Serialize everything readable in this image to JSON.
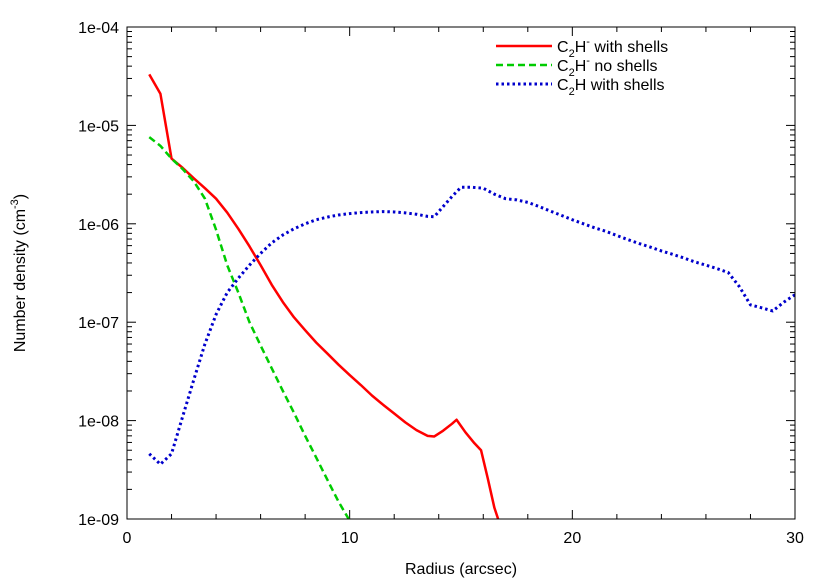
{
  "chart_data": {
    "type": "line",
    "title": "",
    "xlabel": "Radius (arcsec)",
    "ylabel": "Number density (cm-3)",
    "ylabel_parts": {
      "base": "Number density (cm",
      "superscript": "-3",
      "suffix": ")"
    },
    "xlim": [
      0,
      30
    ],
    "ylim": [
      1e-09,
      0.0001
    ],
    "yscale": "log",
    "grid": false,
    "legend_position": "top-right",
    "x_ticks": [
      0,
      10,
      20,
      30
    ],
    "x_tick_labels": [
      "0",
      "10",
      "20",
      "30"
    ],
    "y_ticks": [
      1e-09,
      1e-08,
      1e-07,
      1e-06,
      1e-05,
      0.0001
    ],
    "y_tick_labels": [
      "1e-09",
      "1e-08",
      "1e-07",
      "1e-06",
      "1e-05",
      "1e-04"
    ],
    "series": [
      {
        "name": "C2H- with shells",
        "legend_parts": {
          "base": "C",
          "sub": "2",
          "mid": "H",
          "sup": "-",
          "rest": " with shells"
        },
        "color": "#ff0000",
        "dash": "solid",
        "x": [
          1.0,
          1.5,
          2.0,
          2.5,
          3.0,
          3.5,
          4.0,
          4.5,
          5.0,
          5.5,
          6.0,
          6.5,
          7.0,
          7.5,
          8.0,
          8.5,
          9.0,
          9.5,
          10.0,
          10.5,
          11.0,
          11.5,
          12.0,
          12.5,
          13.0,
          13.5,
          13.8,
          14.2,
          14.6,
          14.8,
          15.2,
          15.6,
          15.9,
          16.2,
          16.5,
          16.7
        ],
        "y": [
          3.3e-05,
          2.1e-05,
          4.6e-06,
          3.7e-06,
          2.9e-06,
          2.3e-06,
          1.8e-06,
          1.3e-06,
          8.9e-07,
          5.9e-07,
          3.8e-07,
          2.4e-07,
          1.6e-07,
          1.12e-07,
          8.3e-08,
          6.2e-08,
          4.8e-08,
          3.7e-08,
          2.9e-08,
          2.3e-08,
          1.8e-08,
          1.45e-08,
          1.18e-08,
          9.6e-09,
          8e-09,
          7e-09,
          6.9e-09,
          7.9e-09,
          9.3e-09,
          1.02e-08,
          7.6e-09,
          5.9e-09,
          5e-09,
          2.6e-09,
          1.3e-09,
          9.5e-10
        ]
      },
      {
        "name": "C2H- no shells",
        "legend_parts": {
          "base": "C",
          "sub": "2",
          "mid": "H",
          "sup": "-",
          "rest": " no shells"
        },
        "color": "#00cc00",
        "dash": "dashed",
        "x": [
          1.0,
          1.5,
          2.0,
          2.5,
          3.0,
          3.5,
          4.0,
          4.5,
          5.0,
          5.5,
          6.0,
          6.5,
          7.0,
          7.5,
          8.0,
          8.5,
          9.0,
          9.5,
          9.9,
          10.1
        ],
        "y": [
          7.6e-06,
          6.2e-06,
          4.6e-06,
          3.6e-06,
          2.7e-06,
          1.8e-06,
          8.7e-07,
          3.8e-07,
          2e-07,
          1e-07,
          5.8e-08,
          3.4e-08,
          2e-08,
          1.2e-08,
          7e-09,
          4.2e-09,
          2.5e-09,
          1.5e-09,
          1.05e-09,
          9e-10
        ]
      },
      {
        "name": "C2H with shells",
        "legend_parts": {
          "base": "C",
          "sub": "2",
          "mid": "H",
          "sup": "",
          "rest": " with shells"
        },
        "color": "#0000cc",
        "dash": "dotted",
        "x": [
          1.0,
          1.5,
          2.0,
          2.5,
          3.0,
          3.5,
          4.0,
          4.5,
          5.0,
          5.5,
          6.0,
          6.5,
          7.0,
          7.5,
          8.0,
          8.5,
          9.0,
          9.5,
          10.0,
          10.5,
          11.0,
          11.5,
          12.0,
          12.5,
          13.0,
          13.5,
          13.8,
          14.2,
          14.6,
          15.0,
          15.5,
          16.0,
          16.5,
          17.0,
          17.5,
          18.0,
          18.5,
          19.0,
          19.5,
          20.0,
          20.5,
          21.0,
          21.5,
          22.0,
          22.5,
          23.0,
          23.5,
          24.0,
          24.5,
          25.0,
          25.5,
          26.0,
          26.5,
          27.0,
          27.5,
          28.0,
          28.5,
          29.0,
          29.5,
          30.0
        ],
        "y": [
          4.6e-09,
          3.6e-09,
          4.6e-09,
          1.1e-08,
          2.6e-08,
          6e-08,
          1.2e-07,
          2e-07,
          2.8e-07,
          3.8e-07,
          5e-07,
          6.4e-07,
          7.7e-07,
          8.9e-07,
          1e-06,
          1.1e-06,
          1.17e-06,
          1.23e-06,
          1.27e-06,
          1.3e-06,
          1.32e-06,
          1.33e-06,
          1.32e-06,
          1.29e-06,
          1.25e-06,
          1.19e-06,
          1.18e-06,
          1.5e-06,
          1.9e-06,
          2.35e-06,
          2.35e-06,
          2.3e-06,
          2e-06,
          1.8e-06,
          1.75e-06,
          1.65e-06,
          1.5e-06,
          1.35e-06,
          1.22e-06,
          1.1e-06,
          1e-06,
          9.1e-07,
          8.4e-07,
          7.6e-07,
          6.9e-07,
          6.3e-07,
          5.8e-07,
          5.3e-07,
          4.9e-07,
          4.5e-07,
          4.1e-07,
          3.8e-07,
          3.5e-07,
          3.2e-07,
          2.3e-07,
          1.5e-07,
          1.4e-07,
          1.3e-07,
          1.6e-07,
          1.9e-07
        ]
      }
    ]
  }
}
